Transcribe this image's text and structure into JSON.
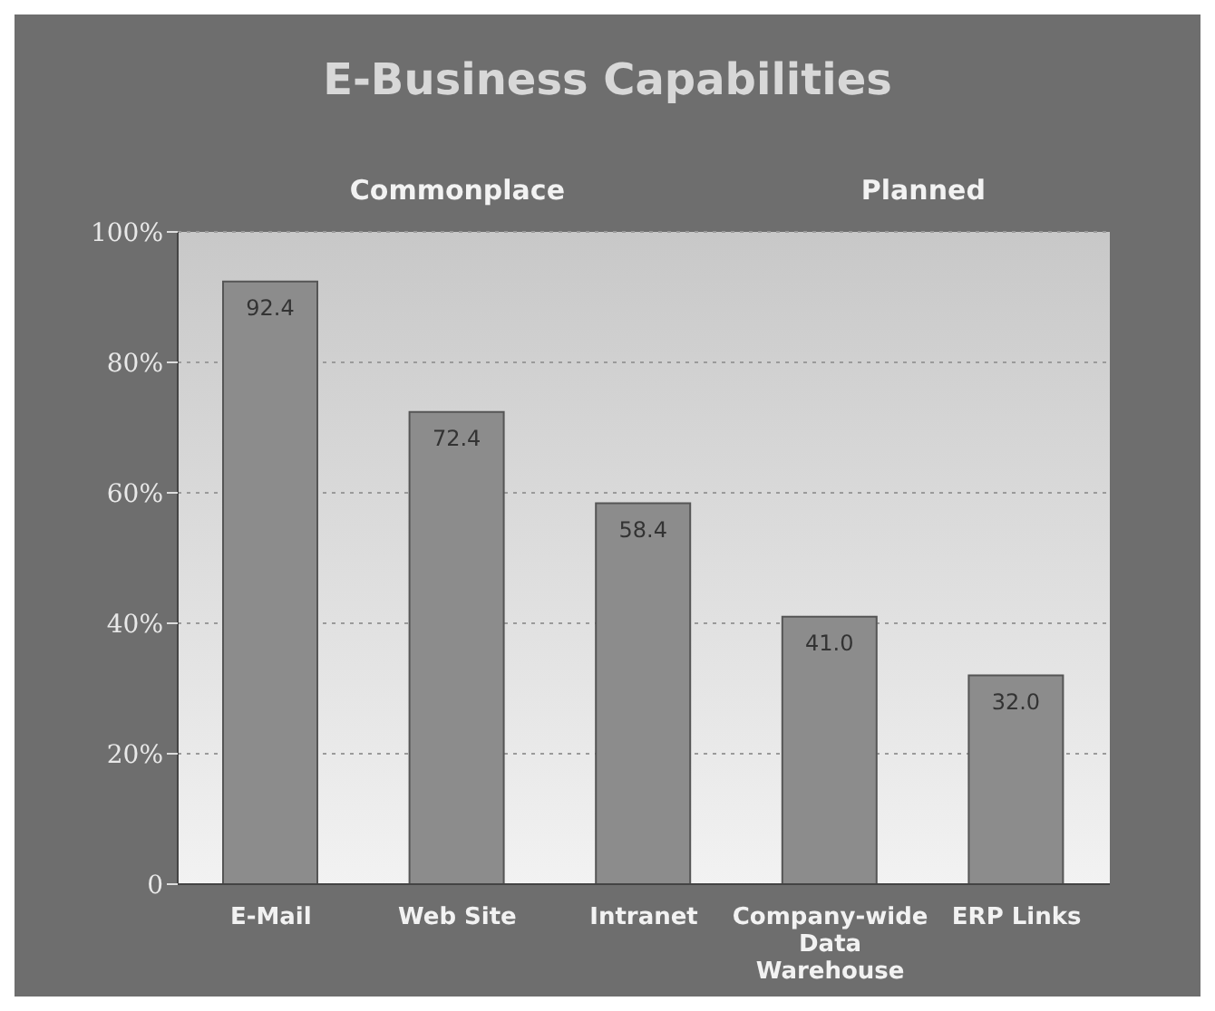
{
  "chart_data": {
    "type": "bar",
    "title": "E-Business Capabilities",
    "annotations": [
      "Commonplace",
      "Planned"
    ],
    "categories": [
      "E-Mail",
      "Web Site",
      "Intranet",
      "Company-wide Data Warehouse",
      "ERP Links"
    ],
    "values": [
      92.4,
      72.4,
      58.4,
      41.0,
      32.0
    ],
    "value_labels": [
      "92.4",
      "72.4",
      "58.4",
      "41.0",
      "32.0"
    ],
    "color": "#8c8c8c",
    "ylim": [
      0,
      100
    ],
    "yticks": [
      {
        "value": 0,
        "label": "0"
      },
      {
        "value": 20,
        "label": "20%"
      },
      {
        "value": 40,
        "label": "40%"
      },
      {
        "value": 60,
        "label": "60%"
      },
      {
        "value": 80,
        "label": "80%"
      },
      {
        "value": 100,
        "label": "100%"
      }
    ],
    "grid": "y"
  }
}
